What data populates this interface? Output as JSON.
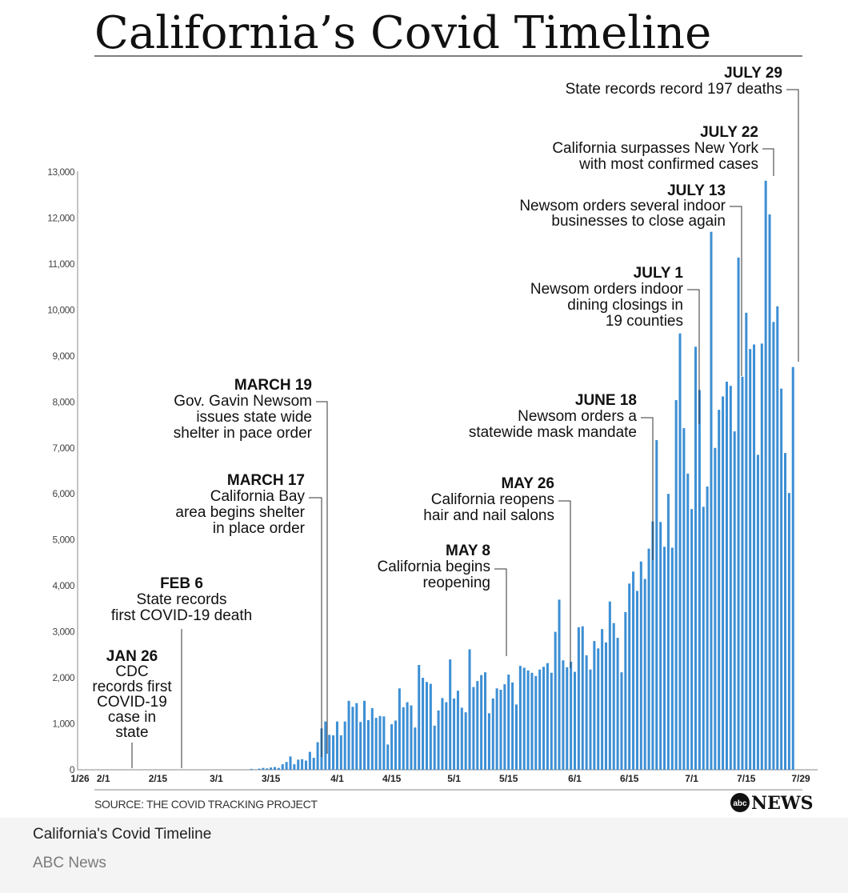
{
  "chart_data": {
    "type": "bar",
    "title": "California’s Covid Timeline",
    "y_ticks": [
      "0",
      "1,000",
      "2,000",
      "3,000",
      "4,000",
      "5,000",
      "6,000",
      "7,000",
      "8,000",
      "9,000",
      "10,000",
      "11,000",
      "12,000",
      "13,000"
    ],
    "y_tick_values": [
      0,
      1000,
      2000,
      3000,
      4000,
      5000,
      6000,
      7000,
      8000,
      9000,
      10000,
      11000,
      12000,
      13000
    ],
    "ylim": [
      0,
      13000
    ],
    "x_ticks": [
      "1/26",
      "2/1",
      "2/15",
      "3/1",
      "3/15",
      "4/1",
      "4/15",
      "5/1",
      "5/15",
      "6/1",
      "6/15",
      "7/1",
      "7/15",
      "7/29"
    ],
    "x_tick_day_of_year": [
      26,
      32,
      46,
      61,
      75,
      92,
      106,
      122,
      136,
      153,
      167,
      183,
      197,
      211
    ],
    "x_range_day_of_year": [
      26,
      211
    ],
    "series_name": "",
    "values": [
      0,
      0,
      0,
      0,
      0,
      0,
      0,
      0,
      0,
      0,
      0,
      0,
      0,
      0,
      0,
      0,
      0,
      0,
      0,
      0,
      0,
      0,
      0,
      0,
      0,
      0,
      0,
      0,
      0,
      0,
      0,
      0,
      0,
      0,
      0,
      0,
      0,
      0,
      0,
      0,
      0,
      0,
      0,
      0,
      0,
      0,
      0,
      0,
      0,
      0,
      0,
      0,
      0,
      0,
      0,
      0,
      0,
      0,
      0,
      0,
      0,
      0,
      0,
      0,
      0,
      0,
      0,
      0,
      0,
      0,
      0,
      0,
      0,
      0,
      0,
      0,
      0,
      0,
      0,
      0,
      0,
      0,
      0,
      0,
      0,
      0,
      0,
      0,
      0,
      0,
      0,
      0,
      0,
      0,
      0,
      0,
      0,
      0,
      0,
      0,
      0,
      0,
      0,
      0,
      0,
      0,
      0,
      0,
      0,
      0,
      0,
      0,
      0,
      0,
      0,
      0,
      0,
      0,
      0,
      0,
      0,
      0,
      0,
      0,
      0,
      0,
      0,
      0,
      0,
      0,
      0,
      0,
      0,
      0,
      0,
      0,
      0,
      0,
      0,
      0,
      0,
      0,
      0,
      0,
      0,
      0,
      0,
      0,
      0,
      0,
      0,
      0,
      0,
      0,
      0,
      0,
      0,
      0,
      0,
      0,
      0,
      0,
      0,
      0,
      0,
      0,
      0,
      0,
      0,
      0,
      0,
      0,
      0,
      0,
      0,
      0,
      0,
      0,
      0,
      0,
      0,
      0,
      0,
      0,
      0,
      0
    ],
    "values_from_day_of_year": 26,
    "daily": [
      20,
      10,
      25,
      40,
      30,
      50,
      60,
      40,
      120,
      170,
      290,
      120,
      220,
      230,
      200,
      390,
      260,
      600,
      900,
      1050,
      760,
      750,
      1050,
      750,
      1050,
      1500,
      1370,
      1450,
      1040,
      1500,
      1080,
      1340,
      1130,
      1170,
      1160,
      550,
      990,
      1070,
      1770,
      1360,
      1470,
      1400,
      920,
      2280,
      2000,
      1910,
      1870,
      960,
      1290,
      1560,
      1470,
      2400,
      1550,
      1720,
      1350,
      1250,
      2620,
      1800,
      1930,
      2060,
      2120,
      1230,
      1550,
      1770,
      1740,
      1860,
      2070,
      1900,
      1420,
      2260,
      2220,
      2160,
      2110,
      2040,
      2180,
      2240,
      2320,
      2110,
      3000,
      3700,
      2380,
      2230,
      2350,
      2130,
      3100,
      3120,
      2490,
      2180,
      2800,
      2640,
      3060,
      2770,
      3660,
      3190,
      2870,
      2120,
      3430,
      4050,
      4310,
      3890,
      4530,
      4150,
      4810,
      5400,
      7170,
      5390,
      4850,
      6000,
      4830,
      8040,
      9490,
      7430,
      6440,
      5670,
      9200,
      8260,
      5720,
      6160,
      11700,
      7000,
      7830,
      8120,
      8440,
      8350,
      7360,
      11140,
      8550,
      9940,
      9150,
      9250,
      6850,
      9270,
      12810,
      12080,
      9740,
      10080,
      8290,
      6890,
      6020,
      8760
    ],
    "daily_start_day_of_year": 70,
    "annotations": [
      {
        "date": "JAN 26",
        "lines": [
          "CDC",
          "records first",
          "COVID-19",
          "case in",
          "state"
        ],
        "day_of_year": 26
      },
      {
        "date": "FEB 6",
        "lines": [
          "State records",
          "first COVID-19 death"
        ],
        "day_of_year": 37
      },
      {
        "date": "MARCH 17",
        "lines": [
          "California Bay",
          "area begins shelter",
          "in place order"
        ],
        "day_of_year": 77
      },
      {
        "date": "MARCH 19",
        "lines": [
          "Gov. Gavin Newsom",
          "issues state wide",
          "shelter in pace order"
        ],
        "day_of_year": 79
      },
      {
        "date": "MAY 8",
        "lines": [
          "California begins",
          "reopening"
        ],
        "day_of_year": 129
      },
      {
        "date": "MAY 26",
        "lines": [
          "California reopens",
          "hair and nail salons"
        ],
        "day_of_year": 147
      },
      {
        "date": "JUNE 18",
        "lines": [
          "Newsom orders a",
          "statewide mask mandate"
        ],
        "day_of_year": 170
      },
      {
        "date": "JULY 1",
        "lines": [
          "Newsom orders indoor",
          "dining closings in",
          "19 counties"
        ],
        "day_of_year": 183
      },
      {
        "date": "JULY 13",
        "lines": [
          "Newsom orders several indoor",
          "businesses to close again"
        ],
        "day_of_year": 195
      },
      {
        "date": "JULY 22",
        "lines": [
          "California surpasses New York",
          "with most confirmed cases"
        ],
        "day_of_year": 204
      },
      {
        "date": "JULY 29",
        "lines": [
          "State records record 197 deaths"
        ],
        "day_of_year": 211
      }
    ],
    "source": "SOURCE: THE COVID TRACKING PROJECT",
    "logo": "abc NEWS",
    "bar_color": "#3d8fd4"
  },
  "caption": "California's Covid Timeline",
  "credit": "ABC News"
}
